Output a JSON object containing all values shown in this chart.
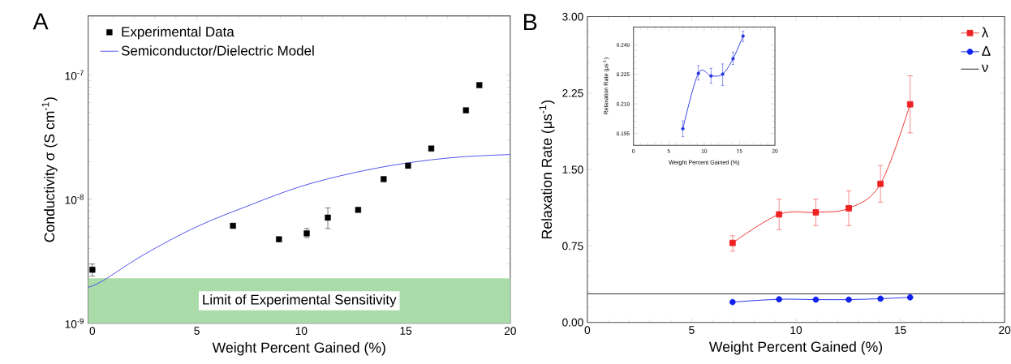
{
  "chart_data": [
    {
      "type": "scatter",
      "title": "A",
      "xlabel": "Weight Percent Gained (%)",
      "ylabel": "Conductivity σ (S cm$^{-1}$)",
      "log": true,
      "legend": "top left",
      "xlim": [
        -0.2,
        20
      ],
      "xticks": [
        0,
        5,
        10,
        15,
        20
      ],
      "ylim": [
        1e-09,
        3e-07
      ],
      "yticks": [
        {
          "value": 1e-09,
          "label": "10$^{-9}$"
        },
        {
          "value": 1e-08,
          "label": "10$^{-8}$"
        },
        {
          "value": 1e-07,
          "label": "10$^{-7}$"
        }
      ],
      "bands": [
        {
          "axis": "y",
          "from": 1e-09,
          "to": 2.3e-09,
          "label": "Limit of Experimental Sensitivity",
          "color": "#aadcaa"
        }
      ],
      "series": [
        {
          "name": "Experimental Data",
          "marker": "square",
          "color": "#000000",
          "x": [
            0,
            6.73,
            8.93,
            10.26,
            11.27,
            12.72,
            13.94,
            15.11,
            16.22,
            17.88,
            18.52
          ],
          "values": [
            2.7e-09,
            6.1e-09,
            4.75e-09,
            5.3e-09,
            7.1e-09,
            8.2e-09,
            1.45e-08,
            1.86e-08,
            2.56e-08,
            5.2e-08,
            8.3e-08
          ],
          "errors": [
            [
              2.4e-09,
              3e-09
            ],
            null,
            null,
            [
              4.9e-09,
              5.8e-09
            ],
            [
              5.8e-09,
              8.5e-09
            ],
            null,
            null,
            null,
            null,
            null,
            null
          ]
        },
        {
          "name": "Semiconductor/Dielectric Model",
          "type": "line",
          "marker": "none",
          "color": "#4444ee",
          "x": [
            -0.2,
            0.5,
            2.5,
            5,
            7.5,
            10,
            12.5,
            15,
            17.5,
            20
          ],
          "values": [
            1.95e-09,
            2.2e-09,
            3.6e-09,
            6e-09,
            8.9e-09,
            1.27e-08,
            1.63e-08,
            1.95e-08,
            2.18e-08,
            2.29e-08
          ]
        }
      ]
    },
    {
      "type": "line",
      "title": "B",
      "xlabel": "Weight Percent Gained (%)",
      "ylabel": "Relaxation Rate (μs$^{-1}$)",
      "legend": "top right",
      "xlim": [
        0,
        20
      ],
      "xticks": [
        0,
        5,
        10,
        15,
        20
      ],
      "ylim": [
        0,
        3
      ],
      "yticks": [
        {
          "value": 0,
          "label": "0.00"
        },
        {
          "value": 0.75,
          "label": "0.75"
        },
        {
          "value": 1.5,
          "label": "1.50"
        },
        {
          "value": 2.25,
          "label": "2.25"
        },
        {
          "value": 3,
          "label": "3.00"
        }
      ],
      "ref_lines": [
        {
          "axis": "y",
          "value": 0.28,
          "label": "ν",
          "color": "#333333"
        }
      ],
      "series": [
        {
          "name": "λ",
          "marker": "square",
          "color": "#ee2222",
          "x": [
            6.96,
            9.19,
            10.95,
            12.53,
            14.05,
            15.47
          ],
          "values": [
            0.78,
            1.06,
            1.08,
            1.12,
            1.36,
            2.14
          ],
          "errors": [
            [
              0.7,
              0.85
            ],
            [
              0.91,
              1.21
            ],
            [
              0.95,
              1.21
            ],
            [
              0.95,
              1.29
            ],
            [
              1.18,
              1.54
            ],
            [
              1.86,
              2.42
            ]
          ]
        },
        {
          "name": "Δ",
          "marker": "circle",
          "color": "#1122ee",
          "x": [
            6.96,
            9.19,
            10.95,
            12.53,
            14.05,
            15.47
          ],
          "values": [
            0.2,
            0.227,
            0.224,
            0.224,
            0.233,
            0.246
          ]
        }
      ]
    },
    {
      "type": "line",
      "xlabel": "Weight Percent Gained (%)",
      "ylabel": "Relaxation Rate (μs$^{-1}$)",
      "xlim": [
        0,
        20
      ],
      "xticks": [
        0,
        5,
        10,
        15,
        20
      ],
      "ylim": [
        0.189,
        0.249
      ],
      "yticks": [
        0.195,
        {
          "value": 0.21,
          "label": "0.210"
        },
        0.225,
        {
          "value": 0.24,
          "label": "0.240"
        }
      ],
      "series": [
        {
          "marker": "circle",
          "color": "#2233dd",
          "x": [
            6.98,
            9.18,
            10.97,
            12.61,
            14.07,
            15.49
          ],
          "values": [
            0.1974,
            0.2255,
            0.2242,
            0.2251,
            0.2329,
            0.2444
          ],
          "errors": [
            [
              0.1934,
              0.2014
            ],
            [
              0.2221,
              0.2294
            ],
            [
              0.2204,
              0.228
            ],
            [
              0.2193,
              0.2303
            ],
            [
              0.23,
              0.2363
            ],
            [
              0.2416,
              0.2469
            ]
          ]
        }
      ]
    }
  ]
}
